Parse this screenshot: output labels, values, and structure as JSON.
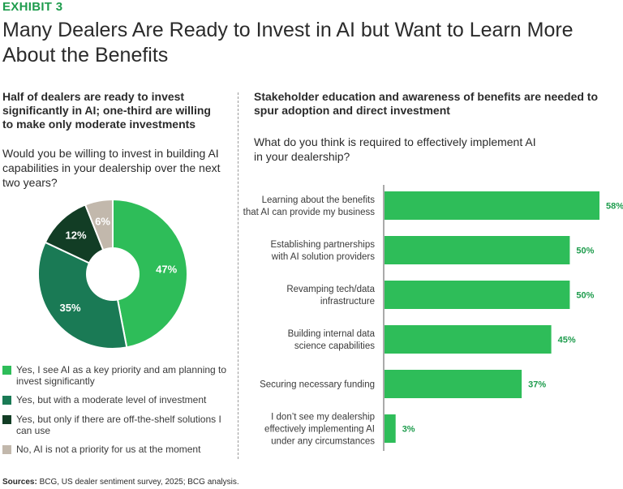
{
  "exhibit": "EXHIBIT 3",
  "title": "Many Dealers Are Ready to Invest in AI but Want to Learn More About the Benefits",
  "left": {
    "heading": "Half of dealers are ready to invest significantly in AI; one-third are willing to make only moderate investments",
    "question": "Would you be willing to invest in building AI capabilities in your dealership over the next two years?"
  },
  "right": {
    "heading": "Stakeholder education and awareness of benefits are needed to spur adoption and direct investment",
    "question": "What do you think is required to effectively implement AI in your dealership?"
  },
  "source": {
    "label": "Sources:",
    "text": "BCG, US dealer sentiment survey, 2025; BCG analysis."
  },
  "colors": {
    "bright_green": "#2ebd59",
    "mid_green": "#1a7a55",
    "dark_green": "#123d25",
    "tan": "#c2b8ac",
    "value_green": "#1e9c4d"
  },
  "chart_data": [
    {
      "type": "pie",
      "donut": true,
      "slices": [
        {
          "label": "Yes, I see AI as a key priority and am planning to invest significantly",
          "value": 47,
          "display": "47%",
          "color": "#2ebd59",
          "text_color": "#ffffff"
        },
        {
          "label": "Yes, but with a moderate level of investment",
          "value": 35,
          "display": "35%",
          "color": "#1a7a55",
          "text_color": "#ffffff"
        },
        {
          "label": "Yes, but only if there are off-the-shelf solutions I can use",
          "value": 12,
          "display": "12%",
          "color": "#123d25",
          "text_color": "#ffffff"
        },
        {
          "label": "No, AI is not a priority for us at the moment",
          "value": 6,
          "display": "6%",
          "color": "#c2b8ac",
          "text_color": "#ffffff"
        }
      ]
    },
    {
      "type": "bar",
      "orientation": "horizontal",
      "color": "#2ebd59",
      "xlim": [
        0,
        58
      ],
      "categories": [
        [
          "Learning about the benefits",
          "that AI can provide my business"
        ],
        [
          "Establishing partnerships",
          "with AI solution providers"
        ],
        [
          "Revamping tech/data",
          "infrastructure"
        ],
        [
          "Building internal data",
          "science capabilities"
        ],
        [
          "Securing necessary funding"
        ],
        [
          "I don’t see my dealership",
          "effectively implementing AI",
          "under any circumstances"
        ]
      ],
      "values": [
        58,
        50,
        50,
        45,
        37,
        3
      ],
      "display": [
        "58%",
        "50%",
        "50%",
        "45%",
        "37%",
        "3%"
      ]
    }
  ]
}
